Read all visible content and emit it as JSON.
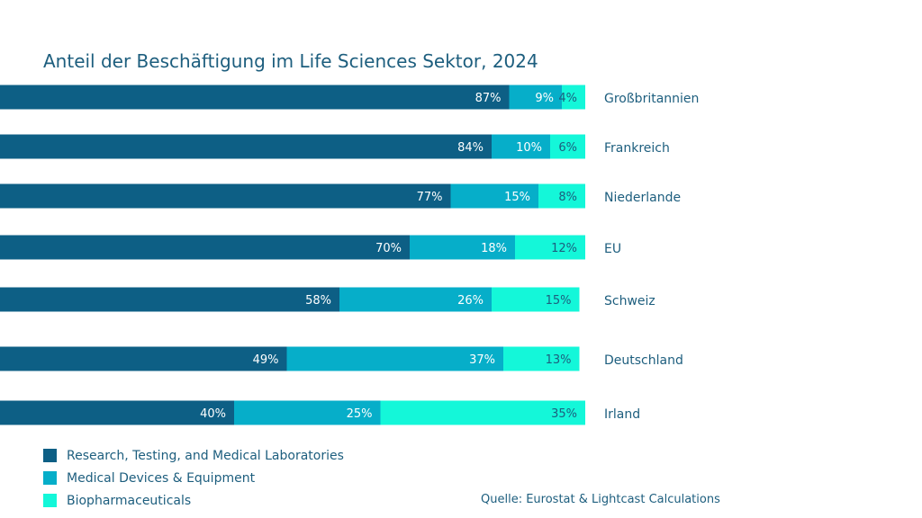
{
  "chart_data": {
    "type": "bar",
    "orientation": "horizontal",
    "stacked": true,
    "title": "Anteil der Beschäftigung im Life Sciences Sektor, 2024",
    "categories": [
      "Großbritannien",
      "Frankreich",
      "Niederlande",
      "EU",
      "Schweiz",
      "Deutschland",
      "Irland"
    ],
    "series": [
      {
        "name": "Research, Testing, and Medical Laboratories",
        "color": "#0d5f85",
        "values": [
          87,
          84,
          77,
          70,
          58,
          49,
          40
        ]
      },
      {
        "name": "Medical Devices & Equipment",
        "color": "#06aec9",
        "values": [
          9,
          10,
          15,
          18,
          26,
          37,
          25
        ]
      },
      {
        "name": "Biopharmaceuticals",
        "color": "#14f7d9",
        "values": [
          4,
          6,
          8,
          12,
          15,
          13,
          35
        ]
      }
    ],
    "value_suffix": "%",
    "xlim": [
      0,
      100
    ],
    "legend_position": "bottom-left",
    "source": "Quelle: Eurostat & Lightcast Calculations"
  }
}
